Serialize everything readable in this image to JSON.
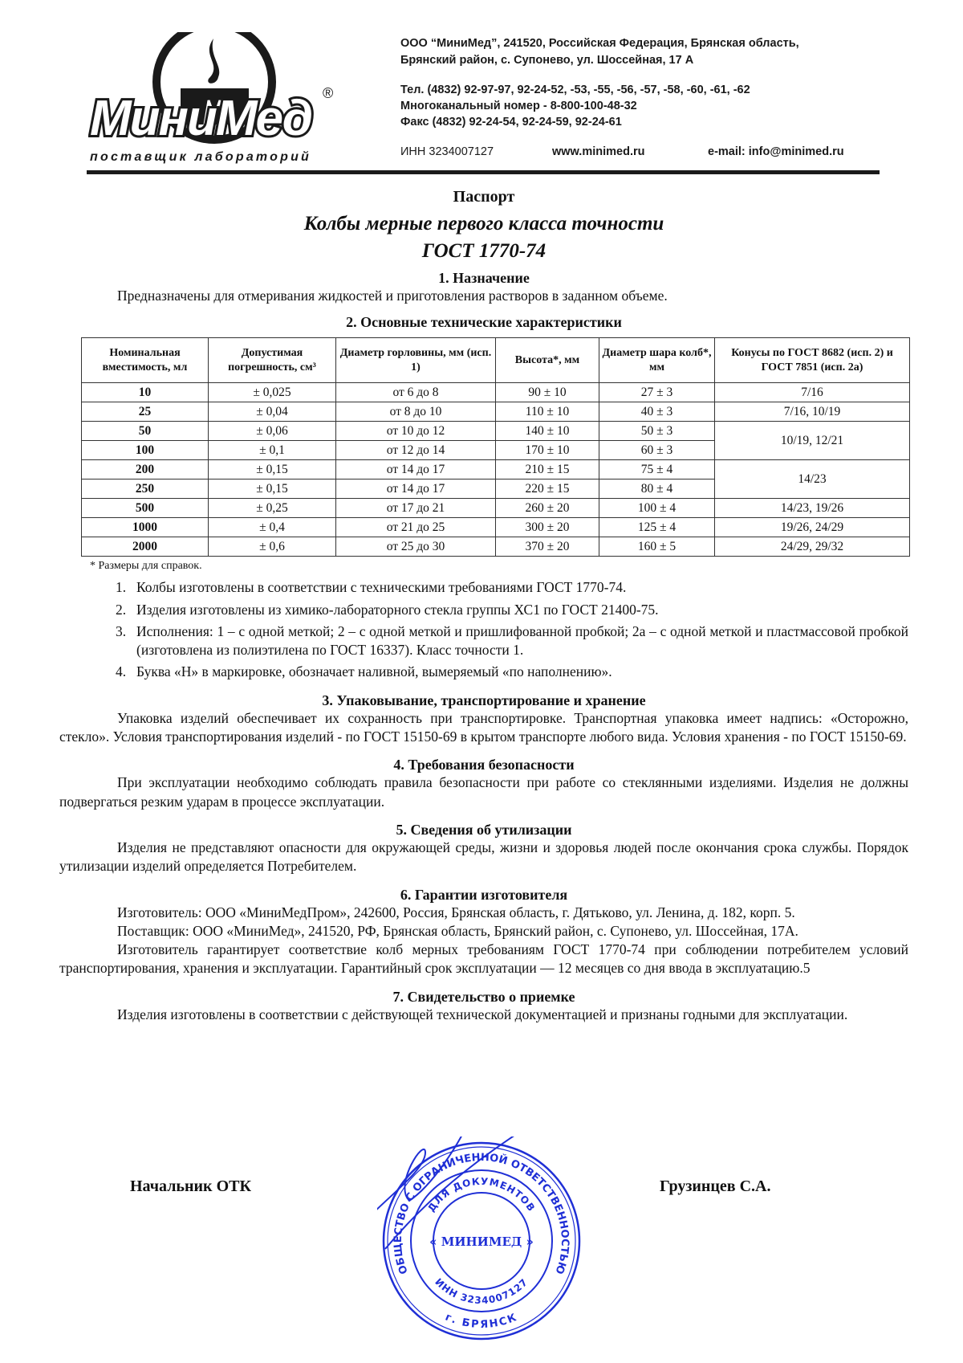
{
  "header": {
    "logo_name": "МиниМед",
    "logo_tagline": "поставщик лабораторий",
    "logo_registered": "®",
    "address_line1": "ООО “МиниМед”, 241520, Российская Федерация, Брянская область,",
    "address_line2": "Брянский район, с. Супонево, ул. Шоссейная, 17 А",
    "phone": "Тел. (4832) 92-97-97, 92-24-52, -53, -55, -56, -57, -58, -60, -61, -62",
    "multichannel": "Многоканальный номер - 8-800-100-48-32",
    "fax": "Факс (4832) 92-24-54, 92-24-59, 92-24-61",
    "inn": "ИНН 3234007127",
    "website": "www.minimed.ru",
    "email": "e-mail: info@minimed.ru"
  },
  "doc": {
    "title": "Паспорт",
    "subtitle": "Колбы мерные первого класса точности",
    "standard": "ГОСТ 1770-74"
  },
  "sections": {
    "s1": {
      "heading": "1.  Назначение",
      "text": "Предназначены для отмеривания жидкостей и приготовления растворов в заданном объеме."
    },
    "s2": {
      "heading": "2.  Основные технические характеристики"
    },
    "s3": {
      "heading": "3.  Упаковывание, транспортирование и хранение",
      "text": "Упаковка изделий обеспечивает их сохранность при транспортировке. Транспортная упаковка имеет надпись: «Осторожно, стекло». Условия транспортирования изделий - по ГОСТ 15150-69 в крытом транспорте любого вида. Условия хранения - по ГОСТ 15150-69."
    },
    "s4": {
      "heading": "4.  Требования безопасности",
      "text": "При эксплуатации необходимо соблюдать правила безопасности при работе со стеклянными изделиями. Изделия не должны подвергаться резким ударам в процессе эксплуатации."
    },
    "s5": {
      "heading": "5.  Сведения об утилизации",
      "text": "Изделия не представляют опасности для окружающей среды, жизни и здоровья людей после окончания срока службы. Порядок утилизации изделий определяется Потребителем."
    },
    "s6": {
      "heading": "6.  Гарантии изготовителя",
      "manufacturer": "Изготовитель: ООО «МиниМедПром», 242600, Россия, Брянская область, г. Дятьково, ул. Ленина, д. 182, корп. 5.",
      "supplier": "Поставщик: ООО «МиниМед», 241520, РФ, Брянская область, Брянский район, с. Супонево, ул. Шоссейная, 17А.",
      "warranty": "Изготовитель гарантирует соответствие колб мерных требованиям ГОСТ 1770-74 при соблюдении потребителем условий транспортирования, хранения и эксплуатации. Гарантийный срок эксплуатации — 12 месяцев со дня ввода в эксплуатацию.5"
    },
    "s7": {
      "heading": "7.  Свидетельство о приемке",
      "text": "Изделия изготовлены в соответствии с действующей технической документацией и признаны годными для эксплуатации."
    }
  },
  "table": {
    "headers": [
      "Номинальная вместимость, мл",
      "Допустимая погрешность, см³",
      "Диаметр горловины, мм (исп. 1)",
      "Высота*, мм",
      "Диаметр шара колб*, мм",
      "Конусы по ГОСТ 8682 (исп. 2) и ГОСТ 7851 (исп. 2а)"
    ],
    "rows": [
      [
        "10",
        "± 0,025",
        "от 6 до 8",
        "90 ± 10",
        "27 ± 3",
        "7/16"
      ],
      [
        "25",
        "± 0,04",
        "от 8 до 10",
        "110 ± 10",
        "40 ± 3",
        "7/16, 10/19"
      ],
      [
        "50",
        "± 0,06",
        "от 10 до 12",
        "140 ± 10",
        "50 ± 3",
        "10/19, 12/21"
      ],
      [
        "100",
        "± 0,1",
        "от 12 до 14",
        "170 ± 10",
        "60 ± 3",
        ""
      ],
      [
        "200",
        "± 0,15",
        "от 14 до 17",
        "210 ± 15",
        "75 ± 4",
        "14/23"
      ],
      [
        "250",
        "± 0,15",
        "от 14 до 17",
        "220 ± 15",
        "80 ± 4",
        ""
      ],
      [
        "500",
        "± 0,25",
        "от 17 до 21",
        "260 ± 20",
        "100 ± 4",
        "14/23, 19/26"
      ],
      [
        "1000",
        "± 0,4",
        "от 21 до 25",
        "300 ± 20",
        "125 ± 4",
        "19/26, 24/29"
      ],
      [
        "2000",
        "± 0,6",
        "от 25 до 30",
        "370 ± 20",
        "160 ± 5",
        "24/29, 29/32"
      ]
    ],
    "footnote": "* Размеры для справок."
  },
  "notes": [
    "Колбы изготовлены в соответствии с техническими требованиями ГОСТ 1770-74.",
    "Изделия изготовлены из химико-лабораторного стекла группы ХС1 по ГОСТ 21400-75.",
    "Исполнения: 1 – с одной меткой; 2 – с одной меткой и пришлифованной пробкой; 2а – с одной меткой и пластмассовой пробкой (изготовлена из полиэтилена по ГОСТ 16337). Класс точности 1.",
    "Буква «Н» в маркировке, обозначает наливной, вымеряемый «по наполнению»."
  ],
  "signatures": {
    "left": "Начальник ОТК",
    "right": "Грузинцев С.А."
  },
  "stamp": {
    "outer_text": "ОБЩЕСТВО С ОГРАНИЧЕННОЙ ОТВЕТСТВЕННОСТЬЮ",
    "inner_text": "ДЛЯ ДОКУМЕНТОВ",
    "center": "« МИНИМЕД »",
    "inn": "ИНН 3234007127",
    "city": "г. БРЯНСК",
    "color": "#1f2fd6"
  }
}
